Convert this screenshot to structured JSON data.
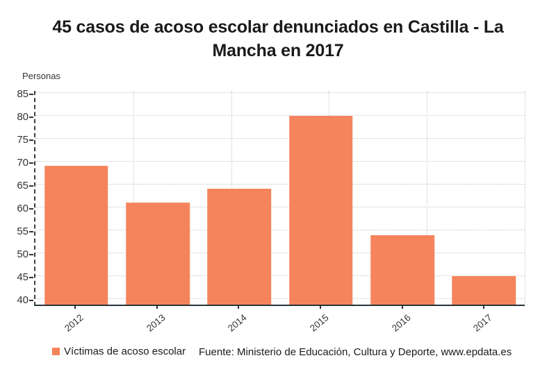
{
  "header": {
    "title_lines": [
      "45 casos de acoso escolar denunciados en Castilla - La",
      "Mancha en 2017"
    ]
  },
  "axis_unit_label": "Personas",
  "legend": {
    "label": "Víctimas de acoso escolar"
  },
  "source_text": "Fuente: Ministerio de Educación, Cultura y Deporte, www.epdata.es",
  "colors": {
    "bar": "#f5845c",
    "axis_line": "#263238",
    "y_axis_dash": "#3c3c3c",
    "grid": "#c9c9c9",
    "title_text": "#1a1a1a",
    "axis_text": "#333333"
  },
  "chart_data": {
    "type": "bar",
    "title": "45 casos de acoso escolar denunciados en Castilla - La Mancha en 2017",
    "categories": [
      "2012",
      "2013",
      "2014",
      "2015",
      "2016",
      "2017"
    ],
    "series": [
      {
        "name": "Víctimas de acoso escolar",
        "values": [
          69,
          61,
          64,
          80,
          54,
          45
        ]
      }
    ],
    "xlabel": "",
    "ylabel": "Personas",
    "ylim": [
      38.8,
      85.7
    ],
    "yticks": [
      40,
      45,
      50,
      55,
      60,
      65,
      70,
      75,
      80,
      85
    ],
    "vertical_grid_divisions": 5,
    "grid": true,
    "grid_style": "dotted",
    "legend_position": "bottom-left",
    "bar_color": "#f5845c"
  }
}
